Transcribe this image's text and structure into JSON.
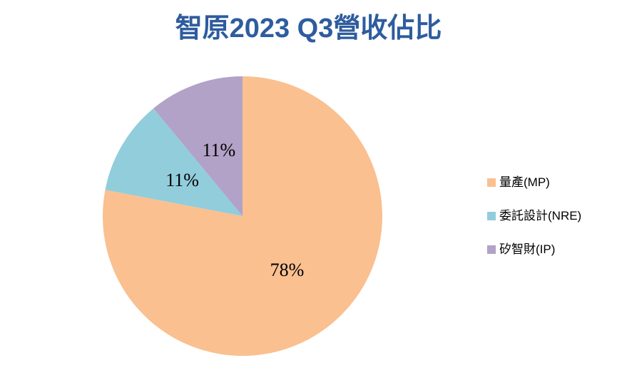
{
  "chart_data": {
    "type": "pie",
    "title": "智原2023 Q3營收佔比",
    "title_color": "#2E5C9E",
    "categories": [
      "量產(MP)",
      "委託設計(NRE)",
      "矽智財(IP)"
    ],
    "values": [
      78,
      11,
      11
    ],
    "data_labels": [
      "78%",
      "11%",
      "11%"
    ],
    "colors": [
      "#FAC090",
      "#92CDDC",
      "#B2A2C7"
    ],
    "data_label_color": "#000000",
    "start_angle_deg": 0,
    "direction": "clockwise",
    "legend_position": "right",
    "grid": false,
    "background": "#FFFFFF"
  },
  "legend": {
    "items": [
      {
        "label": "量產(MP)",
        "color": "#FAC090"
      },
      {
        "label": "委託設計(NRE)",
        "color": "#92CDDC"
      },
      {
        "label": "矽智財(IP)",
        "color": "#B2A2C7"
      }
    ]
  }
}
